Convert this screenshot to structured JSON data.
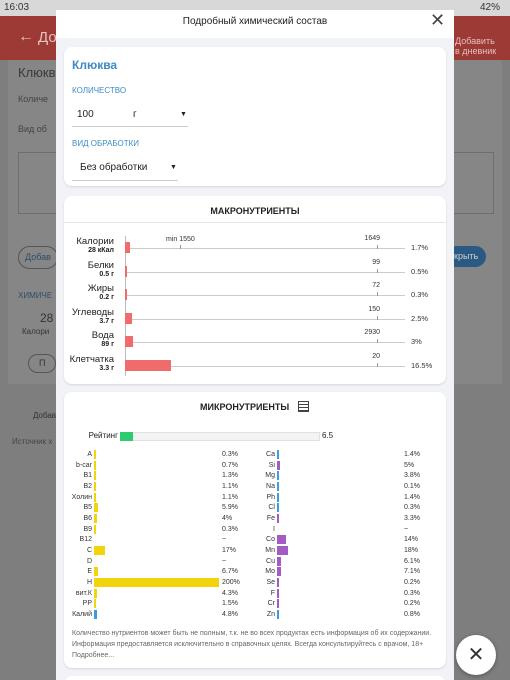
{
  "status_bar": {
    "time": "16:03",
    "battery": "42%"
  },
  "background": {
    "back_title": "До",
    "add_line1": "Добавить",
    "add_line2": "в дневник",
    "name": "Клюкв",
    "qty": "Количе",
    "proc": "Вид об",
    "add_btn": "Добав",
    "open_btn": "крыть",
    "chem": "ХИМИЧЕ",
    "cal_value": "28",
    "cal_label": "Калори",
    "btn_p": "П",
    "add2": "Добав",
    "source": "Источник х"
  },
  "modal": {
    "title": "Подробный химический состав",
    "product": {
      "name": "Клюква",
      "quantity_label": "КОЛИЧЕСТВО",
      "quantity": "100",
      "unit": "г",
      "processing_label": "ВИД ОБРАБОТКИ",
      "processing": "Без обработки"
    },
    "macros": {
      "title": "МАКРОНУТРИЕНТЫ",
      "min_label": "min 1550",
      "rows": [
        {
          "name": "Калории",
          "amount": "28 кКал",
          "norm": "1649",
          "percent": 1.7,
          "percent_label": "1.7%"
        },
        {
          "name": "Белки",
          "amount": "0.5 г",
          "norm": "99",
          "percent": 0.5,
          "percent_label": "0.5%"
        },
        {
          "name": "Жиры",
          "amount": "0.2 г",
          "norm": "72",
          "percent": 0.3,
          "percent_label": "0.3%"
        },
        {
          "name": "Углеводы",
          "amount": "3.7 г",
          "norm": "150",
          "percent": 2.5,
          "percent_label": "2.5%"
        },
        {
          "name": "Вода",
          "amount": "89 г",
          "norm": "2930",
          "percent": 3,
          "percent_label": "3%"
        },
        {
          "name": "Клетчатка",
          "amount": "3.3 г",
          "norm": "20",
          "percent": 16.5,
          "percent_label": "16.5%"
        }
      ]
    },
    "micros": {
      "title": "МИКРОНУТРИЕНТЫ",
      "rating_label": "Рейтинг",
      "rating": 6.5,
      "left": [
        {
          "name": "A",
          "percent": 0.3,
          "label": "0.3%",
          "color": "#f2d40c"
        },
        {
          "name": "b-car",
          "percent": 0.7,
          "label": "0.7%",
          "color": "#f2d40c"
        },
        {
          "name": "B1",
          "percent": 1.3,
          "label": "1.3%",
          "color": "#f2d40c"
        },
        {
          "name": "B2",
          "percent": 1.1,
          "label": "1.1%",
          "color": "#f2d40c"
        },
        {
          "name": "Холин",
          "percent": 1.1,
          "label": "1.1%",
          "color": "#f2d40c"
        },
        {
          "name": "B5",
          "percent": 5.9,
          "label": "5.9%",
          "color": "#f2d40c"
        },
        {
          "name": "B6",
          "percent": 4,
          "label": "4%",
          "color": "#f2d40c"
        },
        {
          "name": "B9",
          "percent": 0.3,
          "label": "0.3%",
          "color": "#f2d40c"
        },
        {
          "name": "B12",
          "percent": null,
          "label": "~",
          "color": "#f2d40c"
        },
        {
          "name": "C",
          "percent": 17,
          "label": "17%",
          "color": "#f2d40c"
        },
        {
          "name": "D",
          "percent": null,
          "label": "~",
          "color": "#f2d40c"
        },
        {
          "name": "E",
          "percent": 6.7,
          "label": "6.7%",
          "color": "#f2d40c"
        },
        {
          "name": "H",
          "percent": 200,
          "label": "200%",
          "color": "#f2d40c"
        },
        {
          "name": "вит.К",
          "percent": 4.3,
          "label": "4.3%",
          "color": "#f2d40c"
        },
        {
          "name": "PP",
          "percent": 1.5,
          "label": "1.5%",
          "color": "#f2d40c"
        },
        {
          "name": "Калий",
          "percent": 4.8,
          "label": "4.8%",
          "color": "#3d9be0"
        }
      ],
      "right": [
        {
          "name": "Ca",
          "percent": 1.4,
          "label": "1.4%",
          "color": "#3d9be0"
        },
        {
          "name": "Si",
          "percent": 5,
          "label": "5%",
          "color": "#a35cc4"
        },
        {
          "name": "Mg",
          "percent": 3.8,
          "label": "3.8%",
          "color": "#3d9be0"
        },
        {
          "name": "Na",
          "percent": 0.1,
          "label": "0.1%",
          "color": "#3d9be0"
        },
        {
          "name": "Ph",
          "percent": 1.4,
          "label": "1.4%",
          "color": "#3d9be0"
        },
        {
          "name": "Cl",
          "percent": 0.3,
          "label": "0.3%",
          "color": "#3d9be0"
        },
        {
          "name": "Fe",
          "percent": 3.3,
          "label": "3.3%",
          "color": "#a35cc4"
        },
        {
          "name": "I",
          "percent": null,
          "label": "~",
          "color": "#a35cc4"
        },
        {
          "name": "Co",
          "percent": 14,
          "label": "14%",
          "color": "#a35cc4"
        },
        {
          "name": "Mn",
          "percent": 18,
          "label": "18%",
          "color": "#a35cc4"
        },
        {
          "name": "Cu",
          "percent": 6.1,
          "label": "6.1%",
          "color": "#a35cc4"
        },
        {
          "name": "Mo",
          "percent": 7.1,
          "label": "7.1%",
          "color": "#a35cc4"
        },
        {
          "name": "Se",
          "percent": 0.2,
          "label": "0.2%",
          "color": "#a35cc4"
        },
        {
          "name": "F",
          "percent": 0.3,
          "label": "0.3%",
          "color": "#a35cc4"
        },
        {
          "name": "Cr",
          "percent": 0.2,
          "label": "0.2%",
          "color": "#a35cc4"
        },
        {
          "name": "Zn",
          "percent": 0.8,
          "label": "0.8%",
          "color": "#3d9be0"
        }
      ],
      "note": "Количество нутриентов может быть не полным, т.к. не во всех продуктах есть информация об их содержании. Информация предоставляется исключительно в справочных целях. Всегда консультируйтесь с врачом, 18+ Подробнее..."
    }
  }
}
